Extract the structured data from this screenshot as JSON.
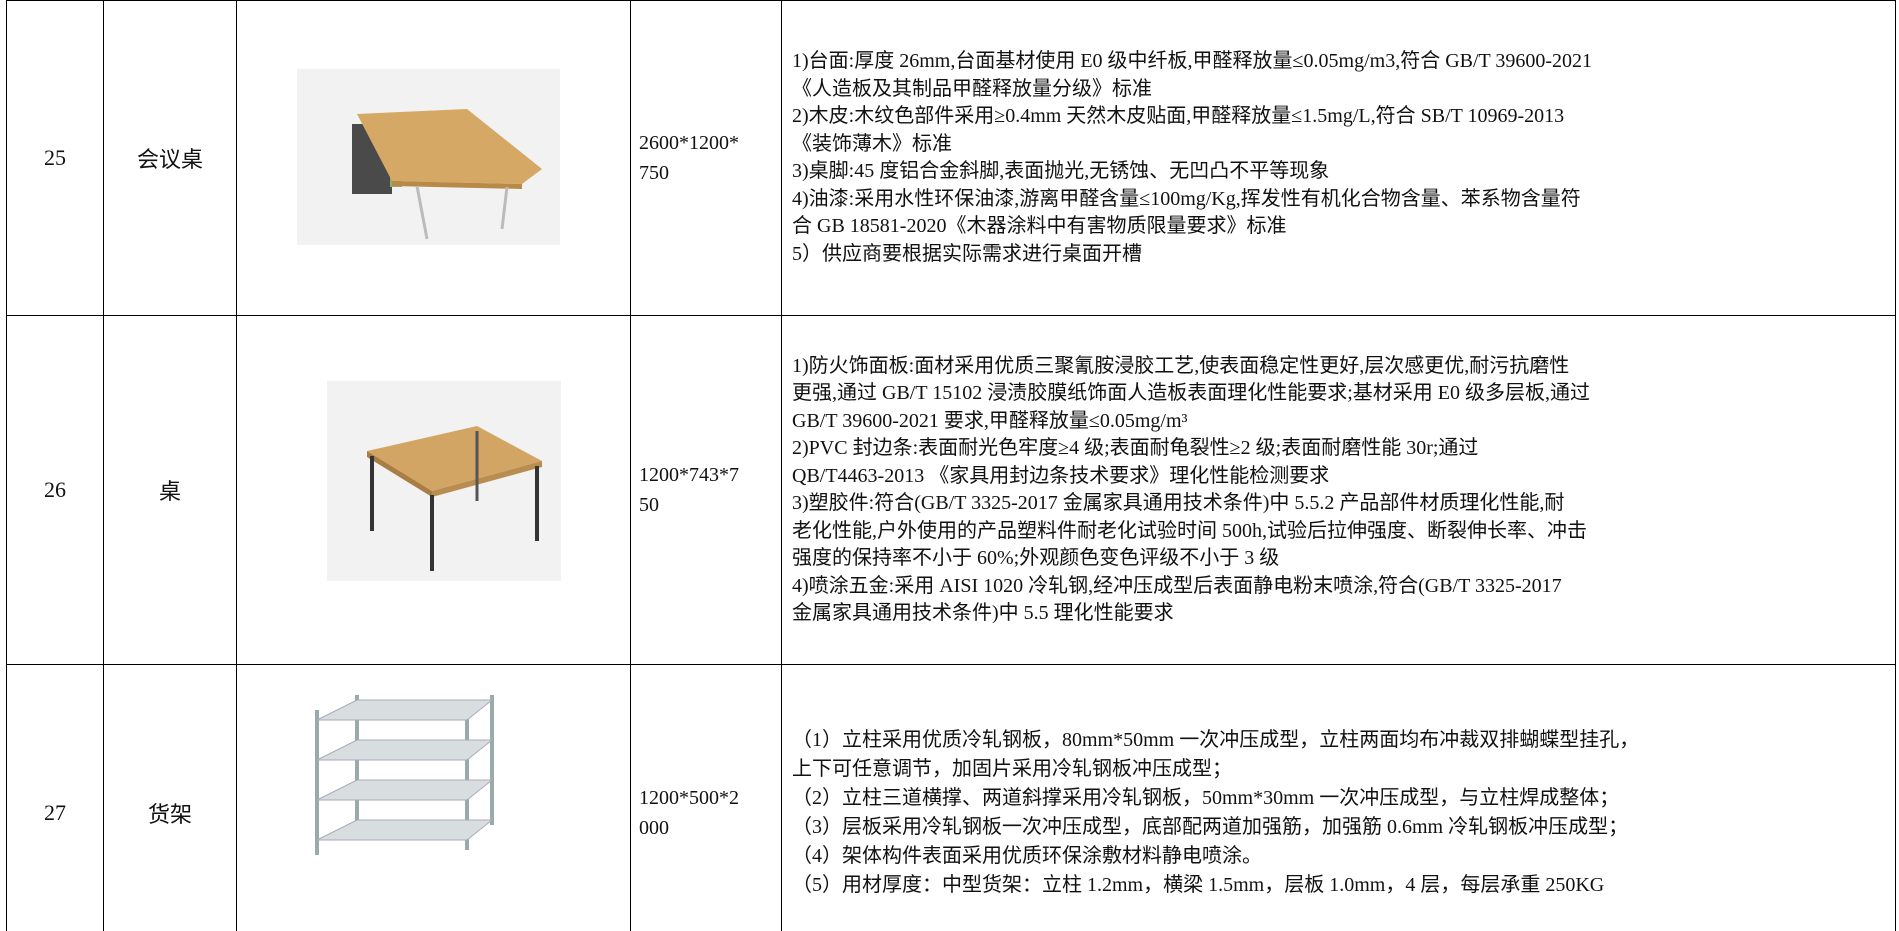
{
  "table": {
    "rows": [
      {
        "no": "25",
        "name": "会议桌",
        "size": [
          "2600*1200*",
          "750"
        ],
        "desc": [
          "1)台面:厚度 26mm,台面基材使用 E0 级中纤板,甲醛释放量≤0.05mg/m3,符合 GB/T 39600-2021",
          "《人造板及其制品甲醛释放量分级》标准",
          "2)木皮:木纹色部件采用≥0.4mm 天然木皮贴面,甲醛释放量≤1.5mg/L,符合 SB/T 10969-2013",
          "《装饰薄木》标准",
          "3)桌脚:45 度铝合金斜脚,表面抛光,无锈蚀、无凹凸不平等现象",
          "4)油漆:采用水性环保油漆,游离甲醛含量≤100mg/Kg,挥发性有机化合物含量、苯系物含量符",
          "合 GB 18581-2020《木器涂料中有害物质限量要求》标准",
          "5）供应商要根据实际需求进行桌面开槽"
        ]
      },
      {
        "no": "26",
        "name": "桌",
        "size": [
          "1200*743*7",
          "50"
        ],
        "desc": [
          "1)防火饰面板:面材采用优质三聚氰胺浸胶工艺,使表面稳定性更好,层次感更优,耐污抗磨性",
          "更强,通过 GB/T 15102 浸渍胶膜纸饰面人造板表面理化性能要求;基材采用 E0 级多层板,通过",
          "GB/T 39600-2021 要求,甲醛释放量≤0.05mg/m³",
          "2)PVC 封边条:表面耐光色牢度≥4 级;表面耐龟裂性≥2 级;表面耐磨性能 30r;通过",
          "QB/T4463-2013 《家具用封边条技术要求》理化性能检测要求",
          "3)塑胶件:符合(GB/T 3325-2017 金属家具通用技术条件)中 5.5.2 产品部件材质理化性能,耐",
          "老化性能,户外使用的产品塑料件耐老化试验时间 500h,试验后拉伸强度、断裂伸长率、冲击",
          "强度的保持率不小于 60%;外观颜色变色评级不小于 3 级",
          "4)喷涂五金:采用 AISI 1020 冷轧钢,经冲压成型后表面静电粉末喷涂,符合(GB/T 3325-2017",
          "金属家具通用技术条件)中 5.5 理化性能要求"
        ]
      },
      {
        "no": "27",
        "name": "货架",
        "size": [
          "1200*500*2",
          "000"
        ],
        "desc": [
          "（1）立柱采用优质冷轧钢板，80mm*50mm 一次冲压成型，立柱两面均布冲裁双排蝴蝶型挂孔，",
          "上下可任意调节，加固片采用冷轧钢板冲压成型；",
          "（2）立柱三道横撑、两道斜撑采用冷轧钢板，50mm*30mm 一次冲压成型，与立柱焊成整体；",
          "（3）层板采用冷轧钢板一次冲压成型，底部配两道加强筋，加强筋 0.6mm 冷轧钢板冲压成型；",
          "（4）架体构件表面采用优质环保涂敷材料静电喷涂。",
          "（5）用材厚度：中型货架：立柱 1.2mm，横梁 1.5mm，层板 1.0mm，4 层，每层承重 250KG"
        ]
      }
    ]
  }
}
